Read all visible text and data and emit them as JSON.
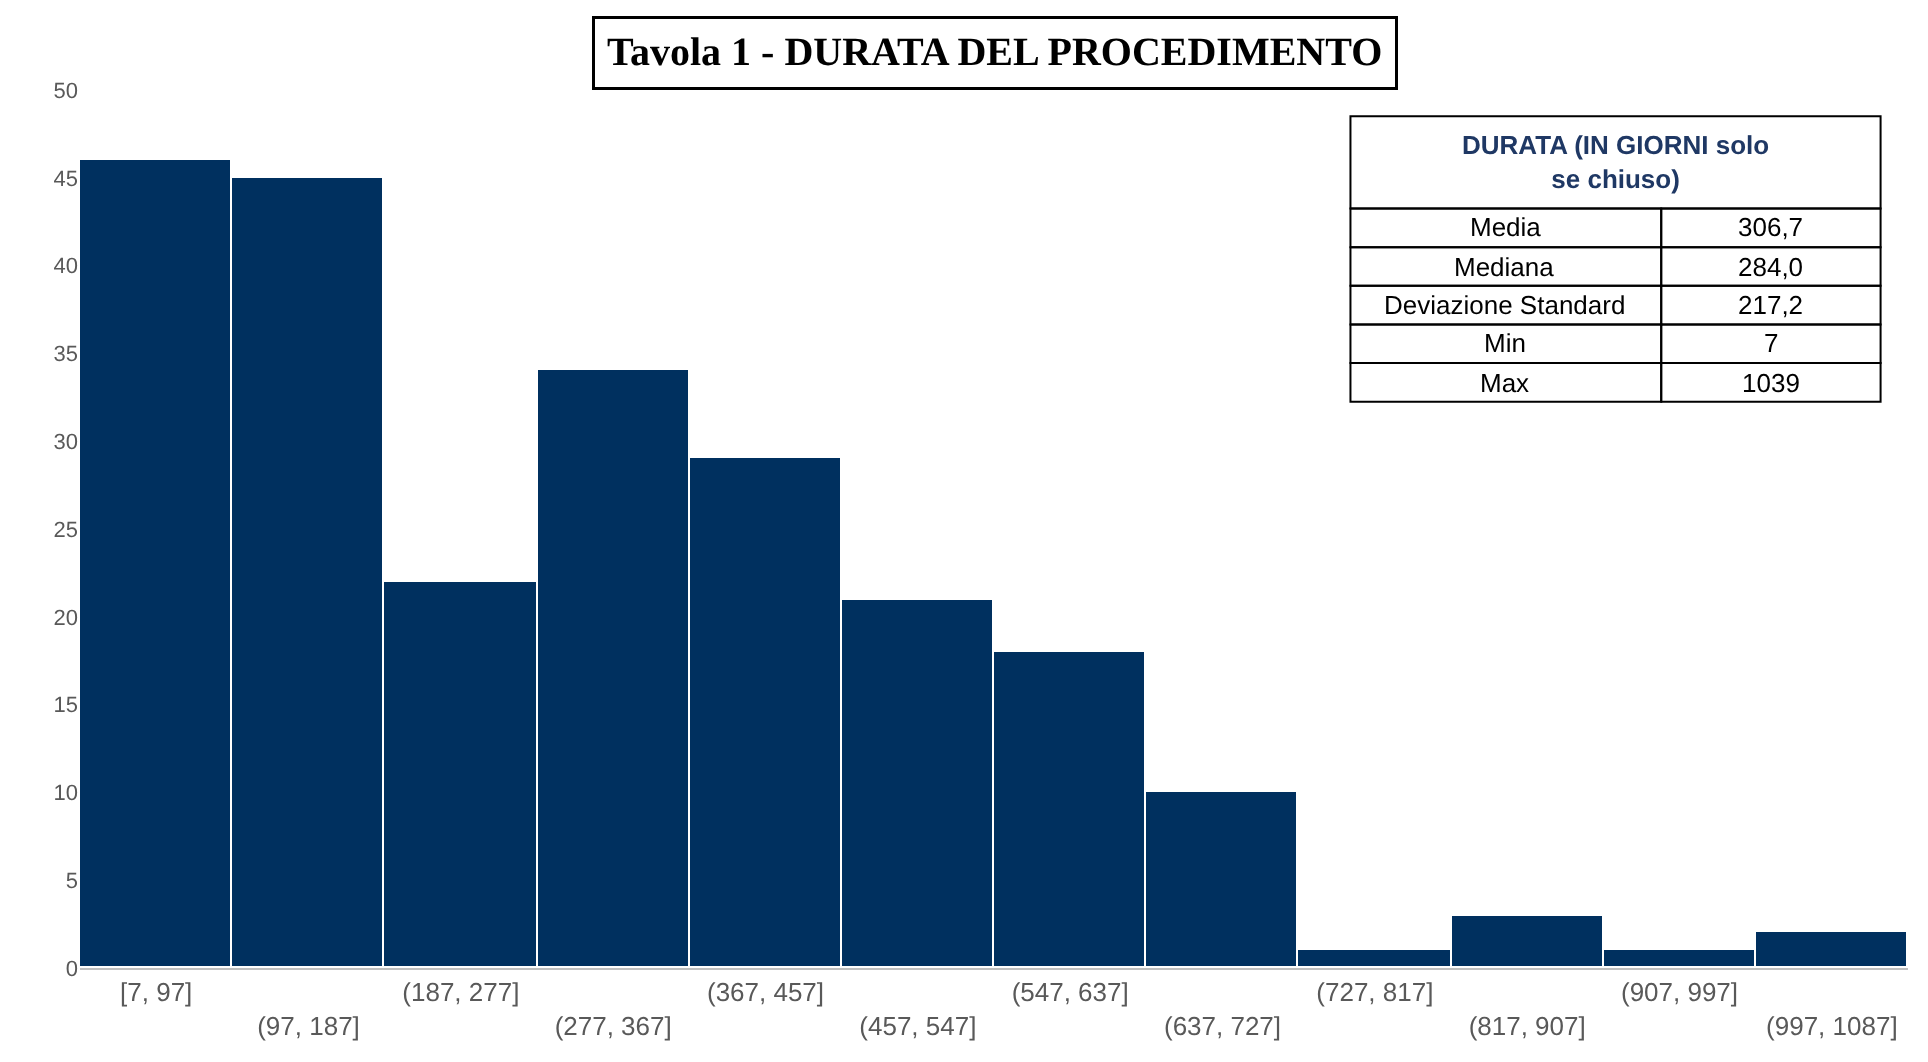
{
  "chart_data": {
    "type": "bar",
    "title": "Tavola 1 - DURATA DEL PROCEDIMENTO",
    "categories": [
      "[7, 97]",
      "(97, 187]",
      "(187, 277]",
      "(277, 367]",
      "(367, 457]",
      "(457, 547]",
      "(547, 637]",
      "(637, 727]",
      "(727, 817]",
      "(817, 907]",
      "(907, 997]",
      "(997, 1087]"
    ],
    "values": [
      46,
      45,
      22,
      34,
      29,
      21,
      18,
      10,
      1,
      3,
      1,
      2
    ],
    "color": "#00305f",
    "ylim": [
      0,
      50
    ],
    "yticks": [
      0,
      5,
      10,
      15,
      20,
      25,
      30,
      35,
      40,
      45,
      50
    ],
    "annotations": [
      "DURATA (IN GIORNI solo se chiuso)",
      "Media",
      "306,7",
      "Mediana",
      "284,0",
      "Deviazione Standard",
      "217,2",
      "Min",
      "7",
      "Max",
      "1039"
    ]
  }
}
